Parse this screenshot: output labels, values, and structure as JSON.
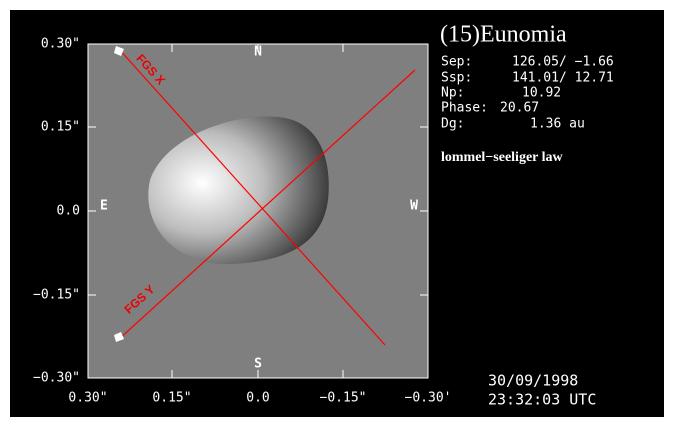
{
  "axes": {
    "yticks": [
      "0.30\"",
      "0.15\"",
      "0.0",
      "−0.15\"",
      "−0.30\""
    ],
    "xticks": [
      "0.30\"",
      "0.15\"",
      "0.0",
      "−0.15\"",
      "−0.30'"
    ]
  },
  "compass": {
    "north": "N",
    "south": "S",
    "east": "E",
    "west": "W"
  },
  "beams": {
    "x": "FGS X",
    "y": "FGS Y"
  },
  "target": "(15)Eunomia",
  "info": [
    {
      "label": "Sep:",
      "value": "126.05/ −1.66"
    },
    {
      "label": "Ssp:",
      "value": "141.01/ 12.71"
    },
    {
      "label": "Np:",
      "value": "10.92"
    },
    {
      "label": "Phase:",
      "value": "20.67"
    },
    {
      "label": "Dg:",
      "value": "1.36 au"
    }
  ],
  "model": "lommel−seeliger law",
  "date": "30/09/1998",
  "time": "23:32:03 UTC"
}
